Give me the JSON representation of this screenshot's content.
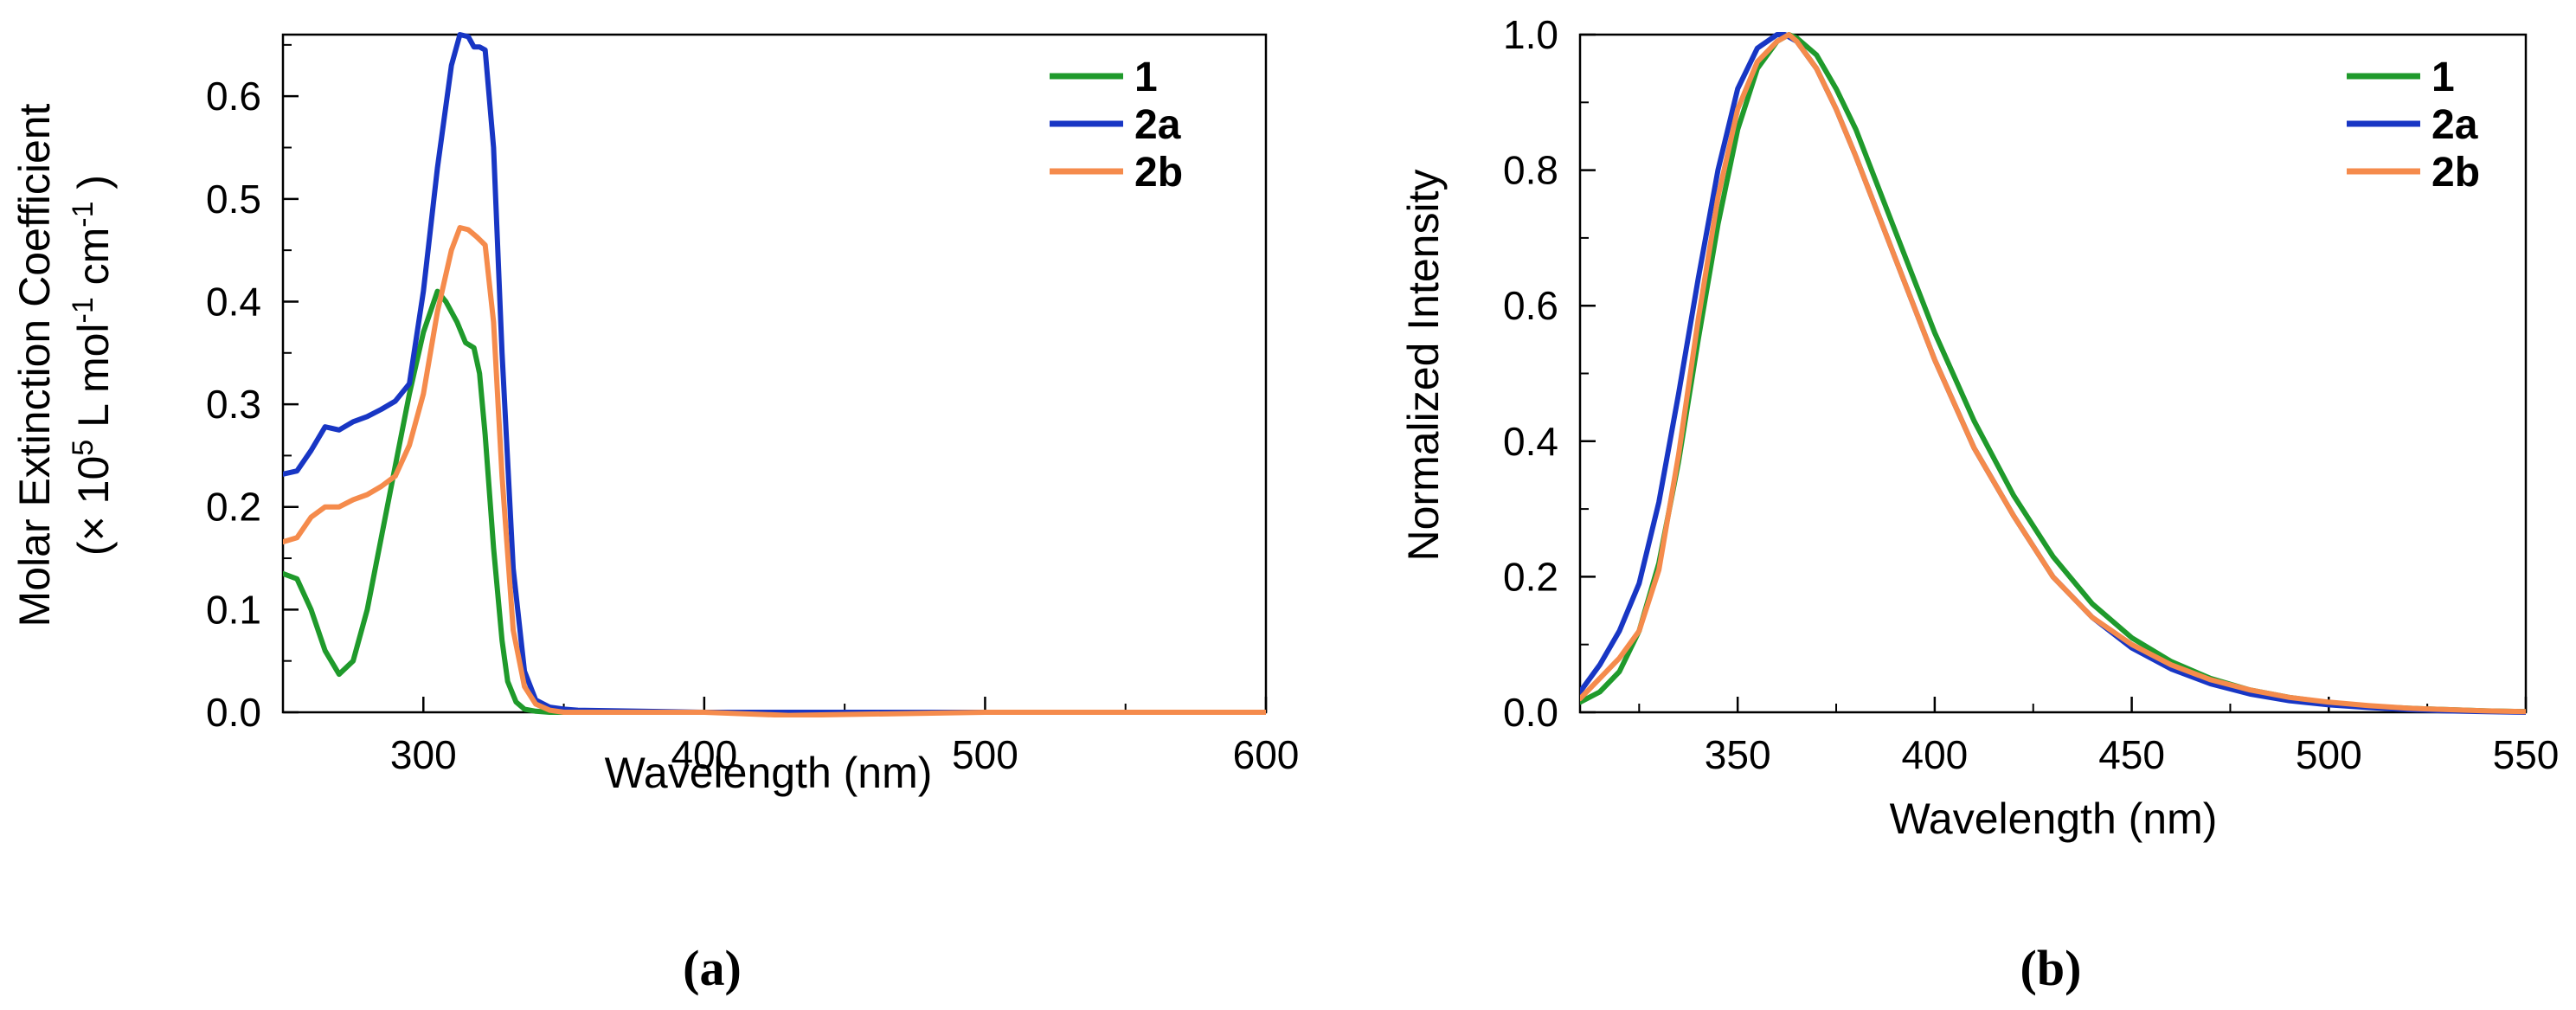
{
  "chart_data": [
    {
      "type": "line",
      "panel": "(a)",
      "xlabel": "Wavelength (nm)",
      "ylabel_line1": "Molar Extinction Coefficient",
      "ylabel_line2": {
        "a": "(× 10",
        "sup1": "5",
        "b": " L mol",
        "sup2": "-1",
        "c": " cm",
        "sup3": "-1",
        "d": " )"
      },
      "xlim": [
        250,
        600
      ],
      "ylim": [
        0,
        0.66
      ],
      "xticks": [
        300,
        400,
        500,
        600
      ],
      "yticks": [
        0.0,
        0.1,
        0.2,
        0.3,
        0.4,
        0.5,
        0.6
      ],
      "ytick_labels": [
        "0.0",
        "0.1",
        "0.2",
        "0.3",
        "0.4",
        "0.5",
        "0.6"
      ],
      "legend_position": "top-right",
      "series": [
        {
          "name": "1",
          "color": "#1f9a2b",
          "x": [
            250,
            255,
            260,
            265,
            270,
            275,
            280,
            285,
            290,
            295,
            300,
            305,
            308,
            312,
            315,
            318,
            320,
            322,
            325,
            328,
            330,
            333,
            336,
            340,
            345,
            350,
            400,
            500,
            600
          ],
          "y": [
            0.135,
            0.13,
            0.1,
            0.06,
            0.037,
            0.05,
            0.1,
            0.17,
            0.24,
            0.31,
            0.37,
            0.41,
            0.4,
            0.38,
            0.36,
            0.355,
            0.33,
            0.27,
            0.16,
            0.07,
            0.03,
            0.01,
            0.003,
            0.001,
            0.0,
            0.0,
            0.0,
            0.0,
            0.0
          ]
        },
        {
          "name": "2a",
          "color": "#1836c4",
          "x": [
            250,
            255,
            260,
            265,
            270,
            275,
            280,
            285,
            290,
            295,
            300,
            305,
            310,
            313,
            316,
            318,
            320,
            322,
            325,
            328,
            332,
            336,
            340,
            345,
            350,
            355,
            400,
            500,
            600
          ],
          "y": [
            0.232,
            0.235,
            0.255,
            0.278,
            0.275,
            0.283,
            0.288,
            0.295,
            0.303,
            0.32,
            0.41,
            0.53,
            0.63,
            0.66,
            0.658,
            0.648,
            0.648,
            0.645,
            0.55,
            0.35,
            0.14,
            0.04,
            0.012,
            0.005,
            0.003,
            0.002,
            0.0,
            0.0,
            0.0
          ]
        },
        {
          "name": "2b",
          "color": "#f58b4c",
          "x": [
            250,
            255,
            260,
            265,
            270,
            275,
            280,
            285,
            290,
            295,
            300,
            305,
            310,
            313,
            316,
            319,
            322,
            325,
            328,
            332,
            336,
            340,
            345,
            350,
            400,
            430,
            500,
            600
          ],
          "y": [
            0.166,
            0.17,
            0.19,
            0.2,
            0.2,
            0.207,
            0.212,
            0.22,
            0.23,
            0.26,
            0.31,
            0.39,
            0.45,
            0.472,
            0.47,
            0.463,
            0.455,
            0.38,
            0.23,
            0.08,
            0.025,
            0.008,
            0.002,
            0.0,
            0.0,
            -0.003,
            0.0,
            0.0
          ]
        }
      ]
    },
    {
      "type": "line",
      "panel": "(b)",
      "xlabel": "Wavelength (nm)",
      "ylabel": "Normalized Intensity",
      "xlim": [
        310,
        550
      ],
      "ylim": [
        0,
        1.0
      ],
      "xticks": [
        350,
        400,
        450,
        500,
        550
      ],
      "yticks": [
        0.0,
        0.2,
        0.4,
        0.6,
        0.8,
        1.0
      ],
      "ytick_labels": [
        "0.0",
        "0.2",
        "0.4",
        "0.6",
        "0.8",
        "1.0"
      ],
      "legend_position": "top-right",
      "series": [
        {
          "name": "1",
          "color": "#1f9a2b",
          "x": [
            310,
            315,
            320,
            325,
            330,
            335,
            340,
            345,
            350,
            355,
            360,
            363,
            365,
            370,
            375,
            380,
            390,
            400,
            410,
            420,
            430,
            440,
            450,
            460,
            470,
            480,
            490,
            500,
            510,
            520,
            530,
            540,
            550
          ],
          "y": [
            0.015,
            0.03,
            0.06,
            0.12,
            0.22,
            0.37,
            0.55,
            0.72,
            0.86,
            0.95,
            0.99,
            1.0,
            0.995,
            0.97,
            0.92,
            0.86,
            0.71,
            0.56,
            0.43,
            0.32,
            0.23,
            0.16,
            0.11,
            0.075,
            0.05,
            0.033,
            0.022,
            0.014,
            0.009,
            0.006,
            0.004,
            0.002,
            0.001
          ]
        },
        {
          "name": "2a",
          "color": "#1836c4",
          "x": [
            310,
            315,
            320,
            325,
            330,
            335,
            340,
            345,
            350,
            355,
            360,
            362,
            365,
            370,
            375,
            380,
            390,
            400,
            410,
            420,
            430,
            440,
            450,
            460,
            470,
            480,
            490,
            500,
            510,
            520,
            530,
            540,
            550
          ],
          "y": [
            0.03,
            0.07,
            0.12,
            0.19,
            0.31,
            0.47,
            0.64,
            0.8,
            0.92,
            0.98,
            1.0,
            1.0,
            0.99,
            0.95,
            0.89,
            0.82,
            0.67,
            0.52,
            0.39,
            0.29,
            0.2,
            0.14,
            0.095,
            0.064,
            0.042,
            0.027,
            0.017,
            0.011,
            0.007,
            0.004,
            0.002,
            0.001,
            0.0
          ]
        },
        {
          "name": "2b",
          "color": "#f58b4c",
          "x": [
            310,
            315,
            320,
            325,
            330,
            335,
            340,
            345,
            350,
            355,
            360,
            363,
            365,
            370,
            375,
            380,
            390,
            400,
            410,
            420,
            430,
            440,
            450,
            460,
            470,
            480,
            490,
            500,
            510,
            520,
            530,
            540,
            550
          ],
          "y": [
            0.02,
            0.05,
            0.08,
            0.12,
            0.21,
            0.38,
            0.58,
            0.76,
            0.89,
            0.96,
            0.99,
            1.0,
            0.99,
            0.95,
            0.89,
            0.82,
            0.67,
            0.52,
            0.39,
            0.29,
            0.2,
            0.14,
            0.1,
            0.07,
            0.048,
            0.033,
            0.022,
            0.015,
            0.01,
            0.006,
            0.004,
            0.002,
            0.001
          ]
        }
      ]
    }
  ]
}
